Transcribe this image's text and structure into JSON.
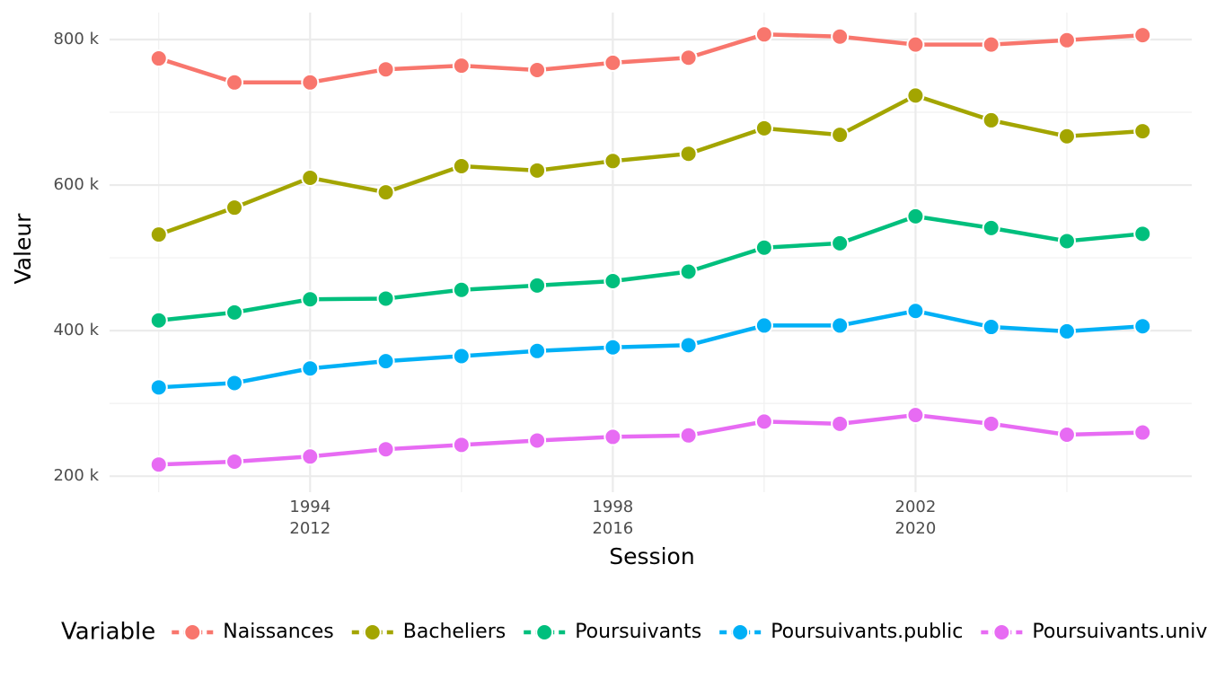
{
  "chart_data": {
    "type": "line",
    "x_label": "Session",
    "y_label": "Valeur",
    "legend_title": "Variable",
    "legend_position": "bottom",
    "grid": true,
    "x": [
      2010,
      2011,
      2012,
      2013,
      2014,
      2015,
      2016,
      2017,
      2018,
      2019,
      2020,
      2021,
      2022,
      2023
    ],
    "xlim": [
      2009.35,
      2023.65
    ],
    "xticks": [
      {
        "value": 2012,
        "label": "1994\n2012"
      },
      {
        "value": 2016,
        "label": "1998\n2016"
      },
      {
        "value": 2020,
        "label": "2002\n2020"
      }
    ],
    "xminor_ticks": [
      2010,
      2014,
      2018,
      2022
    ],
    "ylim": [
      178000,
      837000
    ],
    "yticks": [
      {
        "value": 200000,
        "label": "200 k"
      },
      {
        "value": 400000,
        "label": "400 k"
      },
      {
        "value": 600000,
        "label": "600 k"
      },
      {
        "value": 800000,
        "label": "800 k"
      }
    ],
    "yminor_ticks": [
      300000,
      500000,
      700000
    ],
    "series": [
      {
        "name": "Naissances",
        "color": "#F8766D",
        "values": [
          774000,
          741000,
          741000,
          759000,
          764000,
          758000,
          768000,
          775000,
          807000,
          804000,
          793000,
          793000,
          799000,
          806000
        ]
      },
      {
        "name": "Bacheliers",
        "color": "#A3A500",
        "values": [
          532000,
          569000,
          610000,
          590000,
          626000,
          620000,
          633000,
          643000,
          678000,
          669000,
          723000,
          689000,
          667000,
          674000
        ]
      },
      {
        "name": "Poursuivants",
        "color": "#00BF7D",
        "values": [
          414000,
          425000,
          443000,
          444000,
          456000,
          462000,
          468000,
          481000,
          514000,
          520000,
          557000,
          541000,
          523000,
          533000
        ]
      },
      {
        "name": "Poursuivants.public",
        "color": "#00B0F6",
        "values": [
          322000,
          328000,
          348000,
          358000,
          365000,
          372000,
          377000,
          380000,
          407000,
          407000,
          427000,
          405000,
          399000,
          406000
        ]
      },
      {
        "name": "Poursuivants.universite",
        "color": "#E76BF3",
        "values": [
          216000,
          220000,
          227000,
          237000,
          243000,
          249000,
          254000,
          256000,
          275000,
          272000,
          284000,
          272000,
          257000,
          260000
        ]
      }
    ]
  }
}
